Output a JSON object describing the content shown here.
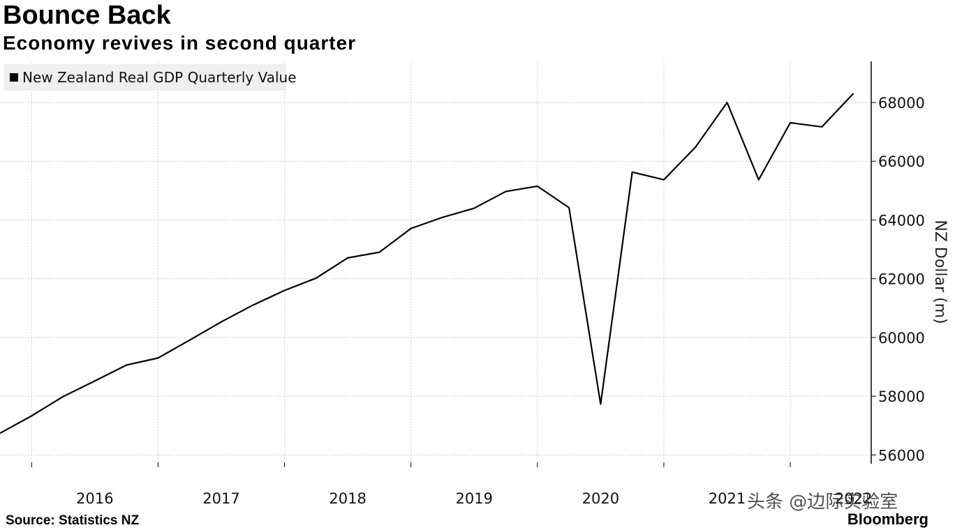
{
  "chart_data": {
    "type": "line",
    "title": "Bounce Back",
    "subtitle": "Economy revives in second quarter",
    "source": "Source: Statistics NZ",
    "brand": "Bloomberg",
    "watermark": "头条 @边际实验室",
    "y_axis_label": "NZ Dollar (m)",
    "x": [
      2015.75,
      2016.0,
      2016.25,
      2016.5,
      2016.75,
      2017.0,
      2017.25,
      2017.5,
      2017.75,
      2018.0,
      2018.25,
      2018.5,
      2018.75,
      2019.0,
      2019.25,
      2019.5,
      2019.75,
      2020.0,
      2020.25,
      2020.5,
      2020.75,
      2021.0,
      2021.25,
      2021.5,
      2021.75,
      2022.0,
      2022.25,
      2022.5
    ],
    "series": [
      {
        "name": "New Zealand Real GDP Quarterly Value",
        "color": "#000000",
        "values": [
          56740,
          57330,
          57990,
          58520,
          59060,
          59300,
          59910,
          60530,
          61100,
          61600,
          62020,
          62710,
          62900,
          63710,
          64090,
          64400,
          64970,
          65150,
          64420,
          57730,
          65630,
          65370,
          66480,
          68000,
          65370,
          67310,
          67170,
          68310
        ]
      }
    ],
    "xlim": [
      2015.75,
      2022.64
    ],
    "ylim": [
      55700,
      69400
    ],
    "xticks": [
      {
        "value": 2016.5,
        "label": "2016"
      },
      {
        "value": 2017.5,
        "label": "2017"
      },
      {
        "value": 2018.5,
        "label": "2018"
      },
      {
        "value": 2019.5,
        "label": "2019"
      },
      {
        "value": 2020.5,
        "label": "2020"
      },
      {
        "value": 2021.5,
        "label": "2021"
      },
      {
        "value": 2022.5,
        "label": "2022"
      }
    ],
    "yticks": [
      56000,
      58000,
      60000,
      62000,
      64000,
      66000,
      68000
    ],
    "grid": true,
    "legend": "top-left"
  }
}
